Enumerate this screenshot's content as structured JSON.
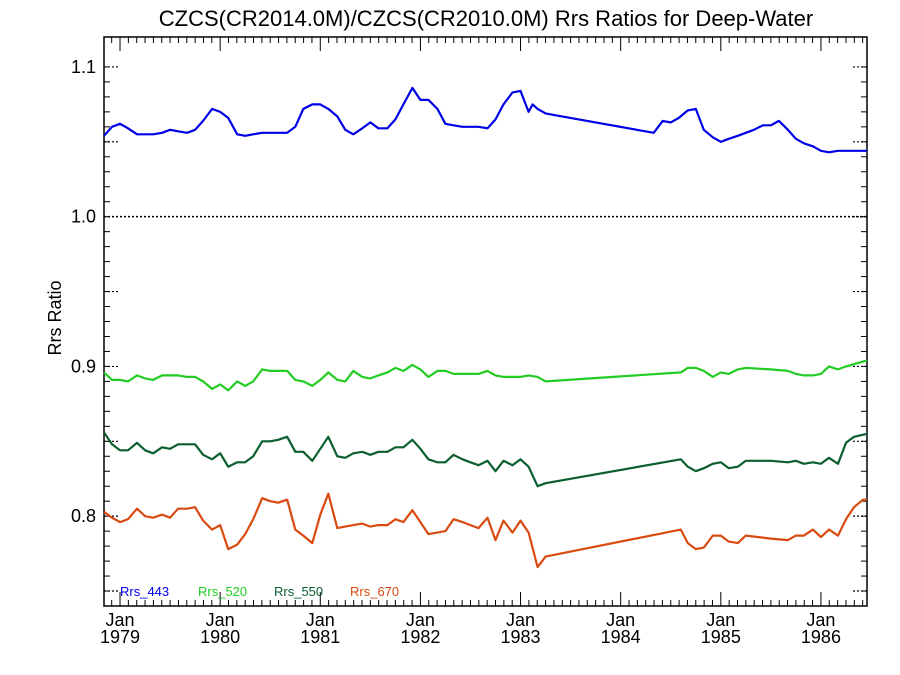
{
  "chart_data": {
    "type": "line",
    "title": "CZCS(CR2014.0M)/CZCS(CR2010.0M)  Rrs Ratios for Deep-Water",
    "ylabel": "Rrs Ratio",
    "xlabel": "",
    "xlim": [
      1978.84,
      1986.46
    ],
    "ylim": [
      0.74,
      1.12
    ],
    "yticks": [
      0.8,
      0.9,
      1.0,
      1.1
    ],
    "ytick_labels": [
      "0.8",
      "0.9",
      "1.0",
      "1.1"
    ],
    "xticks": [
      {
        "month": "Jan",
        "year": "1979",
        "x": 1979.0
      },
      {
        "month": "Jan",
        "year": "1980",
        "x": 1980.0
      },
      {
        "month": "Jan",
        "year": "1981",
        "x": 1981.0
      },
      {
        "month": "Jan",
        "year": "1982",
        "x": 1982.0
      },
      {
        "month": "Jan",
        "year": "1983",
        "x": 1983.0
      },
      {
        "month": "Jan",
        "year": "1984",
        "x": 1984.0
      },
      {
        "month": "Jan",
        "year": "1985",
        "x": 1985.0
      },
      {
        "month": "Jan",
        "year": "1986",
        "x": 1986.0
      }
    ],
    "reference_line": 1.0,
    "legend_position": "bottom-left",
    "series": [
      {
        "name": "Rrs_443",
        "color": "#0000e6",
        "x": [
          1978.84,
          1978.92,
          1979.0,
          1979.08,
          1979.17,
          1979.25,
          1979.33,
          1979.42,
          1979.5,
          1979.58,
          1979.67,
          1979.75,
          1979.83,
          1979.92,
          1980.0,
          1980.08,
          1980.17,
          1980.25,
          1980.33,
          1980.42,
          1980.5,
          1980.58,
          1980.67,
          1980.75,
          1980.83,
          1980.92,
          1981.0,
          1981.08,
          1981.17,
          1981.25,
          1981.33,
          1981.42,
          1981.5,
          1981.58,
          1981.67,
          1981.75,
          1981.83,
          1981.92,
          1982.0,
          1982.08,
          1982.17,
          1982.25,
          1982.33,
          1982.42,
          1982.5,
          1982.58,
          1982.67,
          1982.75,
          1982.83,
          1982.92,
          1983.0,
          1983.08,
          1983.12,
          1983.17,
          1983.25,
          1983.33,
          1984.33,
          1984.42,
          1984.5,
          1984.58,
          1984.67,
          1984.75,
          1984.83,
          1984.92,
          1985.0,
          1985.08,
          1985.17,
          1985.25,
          1985.33,
          1985.42,
          1985.5,
          1985.58,
          1985.67,
          1985.75,
          1985.83,
          1985.92,
          1986.0,
          1986.08,
          1986.17,
          1986.25,
          1986.33,
          1986.42,
          1986.46
        ],
        "values": [
          1.054,
          1.06,
          1.062,
          1.059,
          1.055,
          1.055,
          1.055,
          1.056,
          1.058,
          1.057,
          1.056,
          1.058,
          1.064,
          1.072,
          1.07,
          1.066,
          1.055,
          1.054,
          1.055,
          1.056,
          1.056,
          1.056,
          1.056,
          1.06,
          1.072,
          1.075,
          1.075,
          1.072,
          1.067,
          1.058,
          1.055,
          1.059,
          1.063,
          1.059,
          1.059,
          1.065,
          1.075,
          1.086,
          1.078,
          1.078,
          1.072,
          1.062,
          1.061,
          1.06,
          1.06,
          1.06,
          1.059,
          1.065,
          1.075,
          1.083,
          1.084,
          1.07,
          1.075,
          1.072,
          1.069,
          1.068,
          1.056,
          1.064,
          1.063,
          1.066,
          1.071,
          1.072,
          1.058,
          1.053,
          1.05,
          1.052,
          1.054,
          1.056,
          1.058,
          1.061,
          1.061,
          1.064,
          1.058,
          1.052,
          1.049,
          1.047,
          1.044,
          1.043,
          1.044,
          1.044,
          1.044,
          1.044,
          1.044
        ]
      },
      {
        "name": "Rrs_520",
        "color": "#22cc22",
        "x": [
          1978.84,
          1978.92,
          1979.0,
          1979.08,
          1979.17,
          1979.25,
          1979.33,
          1979.42,
          1979.5,
          1979.58,
          1979.67,
          1979.75,
          1979.83,
          1979.92,
          1980.0,
          1980.08,
          1980.17,
          1980.25,
          1980.33,
          1980.42,
          1980.5,
          1980.58,
          1980.67,
          1980.75,
          1980.83,
          1980.92,
          1981.0,
          1981.08,
          1981.17,
          1981.25,
          1981.33,
          1981.42,
          1981.5,
          1981.58,
          1981.67,
          1981.75,
          1981.83,
          1981.92,
          1982.0,
          1982.08,
          1982.17,
          1982.25,
          1982.33,
          1982.42,
          1982.5,
          1982.58,
          1982.67,
          1982.75,
          1982.83,
          1982.92,
          1983.0,
          1983.08,
          1983.17,
          1983.25,
          1984.6,
          1984.67,
          1984.75,
          1984.83,
          1984.92,
          1985.0,
          1985.08,
          1985.17,
          1985.25,
          1985.5,
          1985.67,
          1985.75,
          1985.83,
          1985.92,
          1986.0,
          1986.08,
          1986.17,
          1986.25,
          1986.46
        ],
        "values": [
          0.896,
          0.891,
          0.891,
          0.89,
          0.894,
          0.892,
          0.891,
          0.894,
          0.894,
          0.894,
          0.893,
          0.893,
          0.89,
          0.885,
          0.888,
          0.884,
          0.89,
          0.887,
          0.89,
          0.898,
          0.897,
          0.897,
          0.897,
          0.891,
          0.89,
          0.887,
          0.891,
          0.896,
          0.891,
          0.89,
          0.897,
          0.893,
          0.892,
          0.894,
          0.896,
          0.899,
          0.897,
          0.901,
          0.898,
          0.893,
          0.897,
          0.897,
          0.895,
          0.895,
          0.895,
          0.895,
          0.897,
          0.894,
          0.893,
          0.893,
          0.893,
          0.894,
          0.893,
          0.89,
          0.896,
          0.899,
          0.899,
          0.897,
          0.893,
          0.896,
          0.895,
          0.898,
          0.899,
          0.898,
          0.897,
          0.895,
          0.894,
          0.894,
          0.895,
          0.9,
          0.898,
          0.9,
          0.904
        ]
      },
      {
        "name": "Rrs_550",
        "color": "#0b5e2e",
        "x": [
          1978.84,
          1978.92,
          1979.0,
          1979.08,
          1979.17,
          1979.25,
          1979.33,
          1979.42,
          1979.5,
          1979.58,
          1979.67,
          1979.75,
          1979.83,
          1979.92,
          1980.0,
          1980.08,
          1980.17,
          1980.25,
          1980.33,
          1980.42,
          1980.5,
          1980.58,
          1980.67,
          1980.75,
          1980.83,
          1980.92,
          1981.0,
          1981.08,
          1981.17,
          1981.25,
          1981.33,
          1981.42,
          1981.5,
          1981.58,
          1981.67,
          1981.75,
          1981.83,
          1981.92,
          1982.0,
          1982.08,
          1982.17,
          1982.25,
          1982.33,
          1982.42,
          1982.5,
          1982.58,
          1982.67,
          1982.75,
          1982.83,
          1982.92,
          1983.0,
          1983.08,
          1983.17,
          1983.25,
          1984.6,
          1984.67,
          1984.75,
          1984.83,
          1984.92,
          1985.0,
          1985.08,
          1985.17,
          1985.25,
          1985.5,
          1985.67,
          1985.75,
          1985.83,
          1985.92,
          1986.0,
          1986.08,
          1986.17,
          1986.25,
          1986.33,
          1986.46
        ],
        "values": [
          0.856,
          0.848,
          0.844,
          0.844,
          0.849,
          0.844,
          0.842,
          0.846,
          0.845,
          0.848,
          0.848,
          0.848,
          0.841,
          0.838,
          0.842,
          0.833,
          0.836,
          0.836,
          0.84,
          0.85,
          0.85,
          0.851,
          0.853,
          0.843,
          0.843,
          0.837,
          0.845,
          0.853,
          0.84,
          0.839,
          0.842,
          0.843,
          0.841,
          0.843,
          0.843,
          0.846,
          0.846,
          0.851,
          0.845,
          0.838,
          0.836,
          0.836,
          0.841,
          0.838,
          0.836,
          0.834,
          0.837,
          0.83,
          0.837,
          0.834,
          0.838,
          0.833,
          0.82,
          0.822,
          0.838,
          0.833,
          0.83,
          0.832,
          0.835,
          0.836,
          0.832,
          0.833,
          0.837,
          0.837,
          0.836,
          0.837,
          0.835,
          0.836,
          0.835,
          0.839,
          0.835,
          0.849,
          0.853,
          0.855
        ]
      },
      {
        "name": "Rrs_670",
        "color": "#d94a10",
        "x": [
          1978.84,
          1978.92,
          1979.0,
          1979.08,
          1979.17,
          1979.25,
          1979.33,
          1979.42,
          1979.5,
          1979.58,
          1979.67,
          1979.75,
          1979.83,
          1979.92,
          1980.0,
          1980.08,
          1980.17,
          1980.25,
          1980.33,
          1980.42,
          1980.5,
          1980.58,
          1980.67,
          1980.75,
          1980.83,
          1980.92,
          1981.0,
          1981.08,
          1981.17,
          1981.25,
          1981.33,
          1981.42,
          1981.5,
          1981.58,
          1981.67,
          1981.75,
          1981.83,
          1981.92,
          1982.0,
          1982.08,
          1982.17,
          1982.25,
          1982.33,
          1982.42,
          1982.5,
          1982.58,
          1982.67,
          1982.75,
          1982.83,
          1982.92,
          1983.0,
          1983.08,
          1983.17,
          1983.25,
          1984.6,
          1984.67,
          1984.75,
          1984.83,
          1984.92,
          1985.0,
          1985.08,
          1985.17,
          1985.25,
          1985.5,
          1985.67,
          1985.75,
          1985.83,
          1985.92,
          1986.0,
          1986.08,
          1986.17,
          1986.25,
          1986.33,
          1986.42,
          1986.46
        ],
        "values": [
          0.803,
          0.799,
          0.796,
          0.798,
          0.805,
          0.8,
          0.799,
          0.801,
          0.799,
          0.805,
          0.805,
          0.806,
          0.797,
          0.791,
          0.794,
          0.778,
          0.781,
          0.788,
          0.798,
          0.812,
          0.81,
          0.809,
          0.811,
          0.791,
          0.787,
          0.782,
          0.801,
          0.815,
          0.792,
          0.793,
          0.794,
          0.795,
          0.793,
          0.794,
          0.794,
          0.798,
          0.796,
          0.804,
          0.796,
          0.788,
          0.789,
          0.79,
          0.798,
          0.796,
          0.794,
          0.792,
          0.799,
          0.784,
          0.797,
          0.789,
          0.797,
          0.789,
          0.766,
          0.773,
          0.791,
          0.782,
          0.778,
          0.779,
          0.787,
          0.787,
          0.783,
          0.782,
          0.787,
          0.785,
          0.784,
          0.787,
          0.787,
          0.791,
          0.786,
          0.791,
          0.787,
          0.798,
          0.806,
          0.811,
          0.811
        ]
      }
    ]
  }
}
